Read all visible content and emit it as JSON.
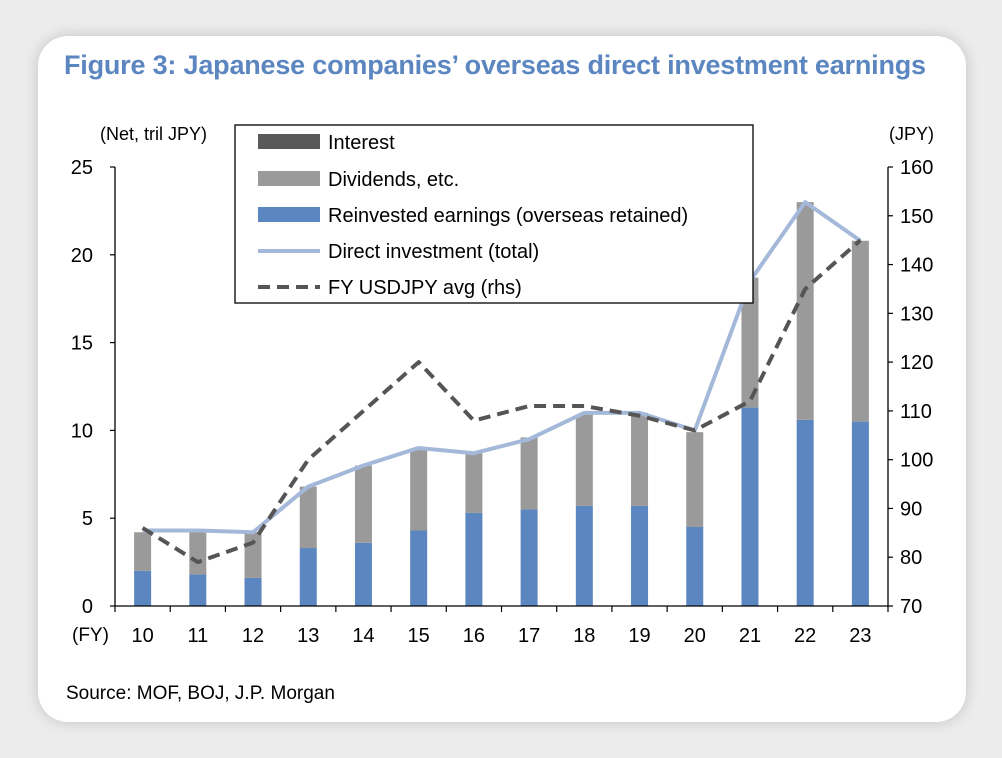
{
  "colors": {
    "title": "#5b86c0",
    "interest": "#595959",
    "dividends": "#9a9a9a",
    "reinvested": "#5b86c0",
    "direct_line": "#a4b9d9",
    "usdjpy_line": "#555555",
    "axis": "#000000"
  },
  "chart_data": {
    "type": "bar",
    "title": "Figure 3: Japanese companies’ overseas direct investment earnings",
    "left_axis_label": "(Net, tril JPY)",
    "right_axis_label": "(JPY)",
    "x_axis_prefix": "(FY)",
    "categories": [
      "10",
      "11",
      "12",
      "13",
      "14",
      "15",
      "16",
      "17",
      "18",
      "19",
      "20",
      "21",
      "22",
      "23"
    ],
    "ylim": [
      0,
      25
    ],
    "yticks": [
      "0",
      "5",
      "10",
      "15",
      "20",
      "25"
    ],
    "y2lim": [
      70,
      160
    ],
    "y2ticks": [
      "70",
      "80",
      "90",
      "100",
      "110",
      "120",
      "130",
      "140",
      "150",
      "160"
    ],
    "series": [
      {
        "name": "Interest",
        "kind": "bar",
        "values": [
          0,
          0,
          0,
          0,
          0,
          0,
          0,
          0,
          0,
          0,
          0,
          0,
          0,
          0
        ]
      },
      {
        "name": "Dividends, etc.",
        "kind": "bar",
        "values": [
          2.2,
          2.4,
          2.6,
          3.5,
          4.4,
          4.6,
          3.4,
          4.1,
          5.2,
          5.3,
          5.4,
          7.4,
          12.4,
          10.3
        ]
      },
      {
        "name": "Reinvested earnings (overseas retained)",
        "kind": "bar",
        "values": [
          2.0,
          1.8,
          1.6,
          3.3,
          3.6,
          4.3,
          5.3,
          5.5,
          5.7,
          5.7,
          4.5,
          11.3,
          10.6,
          10.5
        ]
      },
      {
        "name": "Direct investment (total)",
        "kind": "line",
        "values": [
          4.3,
          4.3,
          4.2,
          6.8,
          8.0,
          9.0,
          8.7,
          9.5,
          11.0,
          11.0,
          10.0,
          18.5,
          23.0,
          20.8
        ]
      },
      {
        "name": "FY USDJPY avg (rhs)",
        "kind": "line_rhs",
        "values": [
          86,
          79,
          83,
          100,
          110,
          120,
          108,
          111,
          111,
          109,
          106,
          112,
          135,
          145
        ]
      }
    ]
  },
  "source": "Source: MOF, BOJ, J.P. Morgan"
}
